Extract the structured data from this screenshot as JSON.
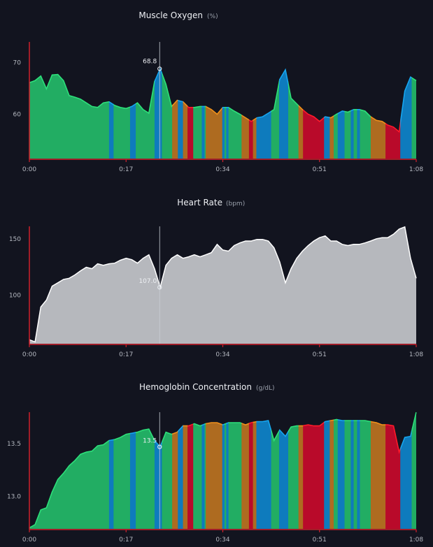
{
  "colors": {
    "background": "#12141f",
    "axis": "#d0202c",
    "hover_line": "#c8ccd4",
    "zones": {
      "green": {
        "fill": "#22ad63",
        "line": "#2de07a"
      },
      "blue": {
        "fill": "#0e7bbd",
        "line": "#16a6ef"
      },
      "orange": {
        "fill": "#ae6b20",
        "line": "#f0901a"
      },
      "red": {
        "fill": "#b90a2a",
        "line": "#ff1a2a"
      },
      "gray": {
        "fill": "#b6b8bd",
        "line": "#ffffff"
      }
    }
  },
  "zones": [
    [
      "green",
      0,
      14.0
    ],
    [
      "blue",
      14.0,
      14.8
    ],
    [
      "green",
      14.8,
      17.7
    ],
    [
      "blue",
      17.7,
      18.7
    ],
    [
      "green",
      18.7,
      22.0
    ],
    [
      "blue",
      22.0,
      23.3
    ],
    [
      "green",
      23.3,
      25.1
    ],
    [
      "orange",
      25.1,
      26.1
    ],
    [
      "blue",
      26.1,
      27.0
    ],
    [
      "orange",
      27.0,
      27.8
    ],
    [
      "red",
      27.8,
      28.8
    ],
    [
      "green",
      28.8,
      30.3
    ],
    [
      "blue",
      30.3,
      30.8
    ],
    [
      "green",
      30.8,
      31.0
    ],
    [
      "orange",
      31.0,
      33.9
    ],
    [
      "blue",
      33.9,
      34.3
    ],
    [
      "green",
      34.3,
      34.6
    ],
    [
      "blue",
      34.6,
      35.0
    ],
    [
      "green",
      35.0,
      37.3
    ],
    [
      "orange",
      37.3,
      38.6
    ],
    [
      "red",
      38.6,
      39.3
    ],
    [
      "orange",
      39.3,
      39.9
    ],
    [
      "blue",
      39.9,
      42.5
    ],
    [
      "green",
      42.5,
      43.9
    ],
    [
      "blue",
      43.9,
      45.5
    ],
    [
      "green",
      45.5,
      47.3
    ],
    [
      "orange",
      47.3,
      48.1
    ],
    [
      "red",
      48.1,
      51.8
    ],
    [
      "blue",
      51.8,
      52.8
    ],
    [
      "orange",
      52.8,
      53.5
    ],
    [
      "green",
      53.5,
      54.2
    ],
    [
      "blue",
      54.2,
      55.4
    ],
    [
      "green",
      55.4,
      56.5
    ],
    [
      "blue",
      56.5,
      57.0
    ],
    [
      "green",
      57.0,
      57.6
    ],
    [
      "blue",
      57.6,
      58.1
    ],
    [
      "green",
      58.1,
      60.0
    ],
    [
      "orange",
      60.0,
      62.6
    ],
    [
      "red",
      62.6,
      65.2
    ],
    [
      "blue",
      65.2,
      67.2
    ],
    [
      "green",
      67.2,
      68
    ]
  ],
  "chart_data": [
    {
      "type": "area",
      "title": "Muscle Oxygen",
      "unit": "(%)",
      "colored_by_zone": true,
      "x_ticks": [
        "0:00",
        "0:17",
        "0:34",
        "0:51",
        "1:08"
      ],
      "x_tick_minutes": [
        0,
        17,
        34,
        51,
        68
      ],
      "xlim": [
        0,
        68
      ],
      "y_ticks": [
        60,
        70
      ],
      "y_tick_labels": [
        "60",
        "70"
      ],
      "ylim": [
        51.4,
        74
      ],
      "hover": {
        "minute": 22.9,
        "value": 68.8,
        "label": "68.8"
      },
      "values": [
        66.1,
        66.5,
        67.4,
        64.9,
        67.6,
        67.7,
        66.5,
        63.6,
        63.3,
        62.9,
        62.2,
        61.5,
        61.3,
        62.2,
        62.4,
        61.7,
        61.3,
        61.1,
        61.5,
        62.2,
        60.9,
        60.2,
        66.3,
        68.8,
        65.8,
        61.5,
        62.7,
        62.4,
        61.3,
        61.3,
        61.5,
        61.5,
        60.9,
        60.0,
        61.3,
        61.3,
        60.6,
        60.0,
        59.3,
        58.6,
        59.3,
        59.5,
        60.2,
        60.9,
        66.7,
        68.6,
        63.1,
        62.0,
        60.9,
        60.0,
        59.5,
        58.6,
        59.5,
        59.3,
        60.0,
        60.6,
        60.4,
        60.9,
        60.9,
        60.6,
        59.5,
        58.8,
        58.6,
        57.9,
        57.5,
        56.6,
        64.5,
        67.2,
        66.5
      ]
    },
    {
      "type": "area",
      "title": "Heart Rate",
      "unit": "(bpm)",
      "colored_by_zone": false,
      "x_ticks": [
        "0:00",
        "0:17",
        "0:34",
        "0:51",
        "1:08"
      ],
      "x_tick_minutes": [
        0,
        17,
        34,
        51,
        68
      ],
      "xlim": [
        0,
        68
      ],
      "y_ticks": [
        100,
        150
      ],
      "y_tick_labels": [
        "100",
        "150"
      ],
      "ylim": [
        57,
        161
      ],
      "hover": {
        "minute": 22.9,
        "value": 107.0,
        "label": "107.0"
      },
      "values": [
        60.5,
        58.6,
        89.5,
        95.7,
        108,
        111,
        114,
        115,
        118,
        121.6,
        124.7,
        123.5,
        127.8,
        126.5,
        127.8,
        128.4,
        131,
        132.7,
        131.5,
        128.4,
        132.7,
        135.8,
        123.5,
        107,
        126.5,
        132.7,
        135.8,
        132.7,
        134,
        135.8,
        134,
        135.8,
        137.7,
        145,
        140,
        139,
        144,
        146.3,
        148,
        148,
        149.4,
        149.4,
        148,
        142,
        129.6,
        111,
        123.5,
        132.7,
        139,
        144,
        148,
        151,
        152.5,
        148,
        148,
        145,
        144,
        145,
        145,
        146.3,
        148,
        150,
        151,
        151,
        154,
        158.6,
        160.5,
        132.7,
        115
      ]
    },
    {
      "type": "area",
      "title": "Hemoglobin Concentration",
      "unit": "(g/dL)",
      "colored_by_zone": true,
      "x_ticks": [
        "0:00",
        "0:17",
        "0:34",
        "0:51",
        "1:08"
      ],
      "x_tick_minutes": [
        0,
        17,
        34,
        51,
        68
      ],
      "xlim": [
        0,
        68
      ],
      "y_ticks": [
        13.0,
        13.5
      ],
      "y_tick_labels": [
        "13.0",
        "13.5"
      ],
      "ylim": [
        12.69,
        13.8
      ],
      "hover": {
        "minute": 22.9,
        "value": 13.47,
        "label": "13.5"
      },
      "values": [
        12.7,
        12.73,
        12.87,
        12.89,
        13.04,
        13.16,
        13.22,
        13.29,
        13.34,
        13.4,
        13.42,
        13.43,
        13.48,
        13.49,
        13.53,
        13.54,
        13.56,
        13.59,
        13.6,
        13.61,
        13.63,
        13.64,
        13.53,
        13.47,
        13.61,
        13.59,
        13.61,
        13.67,
        13.67,
        13.69,
        13.67,
        13.69,
        13.7,
        13.7,
        13.68,
        13.7,
        13.7,
        13.7,
        13.68,
        13.7,
        13.71,
        13.71,
        13.72,
        13.53,
        13.63,
        13.57,
        13.66,
        13.67,
        13.67,
        13.68,
        13.67,
        13.67,
        13.71,
        13.72,
        13.73,
        13.72,
        13.72,
        13.72,
        13.72,
        13.72,
        13.71,
        13.7,
        13.68,
        13.68,
        13.67,
        13.42,
        13.56,
        13.57,
        13.8
      ]
    }
  ]
}
